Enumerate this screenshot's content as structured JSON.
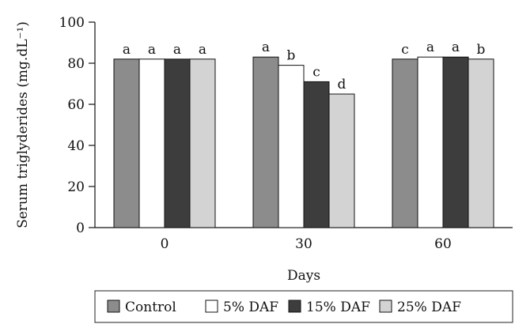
{
  "chart_data": {
    "type": "bar",
    "title": "",
    "xlabel": "Days",
    "ylabel": "Serum triglyderides (mg.dL⁻¹)",
    "ylim": [
      0,
      100
    ],
    "yticks": [
      "0",
      "20",
      "40",
      "60",
      "80",
      "100"
    ],
    "categories": [
      "0",
      "30",
      "60"
    ],
    "grid": false,
    "legend_position": "bottom",
    "series": [
      {
        "name": "Control",
        "color": "#8c8c8c",
        "values": [
          82,
          83,
          82
        ],
        "labels": [
          "a",
          "a",
          "c"
        ]
      },
      {
        "name": "5% DAF",
        "color": "#ffffff",
        "values": [
          82,
          79,
          83
        ],
        "labels": [
          "a",
          "b",
          "a"
        ]
      },
      {
        "name": "15% DAF",
        "color": "#3d3d3d",
        "values": [
          82,
          71,
          83
        ],
        "labels": [
          "a",
          "c",
          "a"
        ]
      },
      {
        "name": "25% DAF",
        "color": "#d3d3d3",
        "values": [
          82,
          65,
          82
        ],
        "labels": [
          "a",
          "d",
          "b"
        ]
      }
    ]
  }
}
